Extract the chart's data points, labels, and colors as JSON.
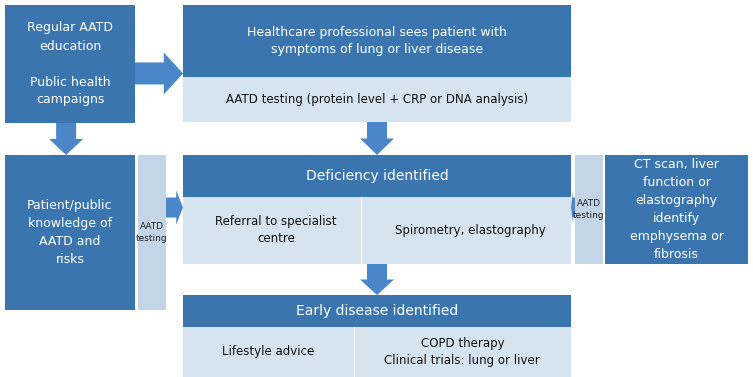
{
  "bg_color": "#ffffff",
  "dark_blue": "#3A75B0",
  "mid_blue": "#4A86C8",
  "light_blue": "#C5D5E8",
  "light_blue2": "#D6E4F0",
  "figw": 7.53,
  "figh": 3.77,
  "dpi": 100,
  "boxes": {
    "top_left_header": "Healthcare professional sees patient with\nsymptoms of lung or liver disease",
    "top_left_sub": "AATD testing (protein level + CRP or DNA analysis)",
    "mid_header": "Deficiency identified",
    "mid_left": "Referral to specialist\ncentre",
    "mid_right": "Spirometry, elastography",
    "bot_header": "Early disease identified",
    "bot_left": "Lifestyle advice",
    "bot_right": "COPD therapy\nClinical trials: lung or liver",
    "tl_text": "Regular AATD\neducation\n\nPublic health\ncampaigns",
    "bl_text": "Patient/public\nknowledge of\nAATD and\nrisks",
    "right_text": "CT scan, liver\nfunction or\nelastography\nidentify\nemphysema or\nfibrosis",
    "aatd_left": "AATD\ntesting",
    "aatd_right": "AATD\ntesting"
  }
}
